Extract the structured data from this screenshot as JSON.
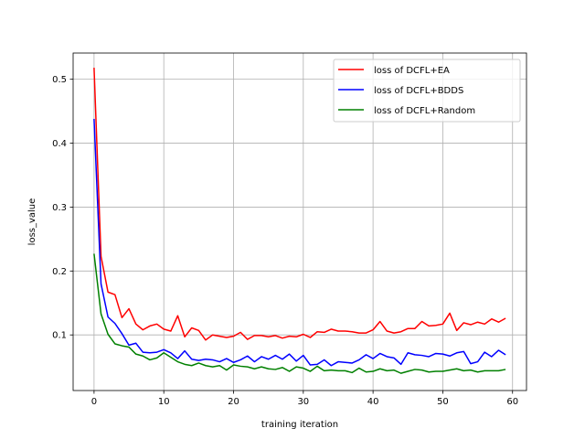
{
  "chart_data": {
    "type": "line",
    "title": "",
    "xlabel": "training iteration",
    "ylabel": "loss_value",
    "xlim": [
      -3,
      62
    ],
    "ylim": [
      0.013,
      0.541
    ],
    "xticks": [
      0,
      10,
      20,
      30,
      40,
      50,
      60
    ],
    "yticks": [
      0.1,
      0.2,
      0.3,
      0.4,
      0.5
    ],
    "grid": true,
    "legend_position": "top-right",
    "x": [
      0,
      1,
      2,
      3,
      4,
      5,
      6,
      7,
      8,
      9,
      10,
      11,
      12,
      13,
      14,
      15,
      16,
      17,
      18,
      19,
      20,
      21,
      22,
      23,
      24,
      25,
      26,
      27,
      28,
      29,
      30,
      31,
      32,
      33,
      34,
      35,
      36,
      37,
      38,
      39,
      40,
      41,
      42,
      43,
      44,
      45,
      46,
      47,
      48,
      49,
      50,
      51,
      52,
      53,
      54,
      55,
      56,
      57,
      58,
      59
    ],
    "series": [
      {
        "name": "loss of DCFL+EA",
        "color": "#ff0000",
        "values": [
          0.518,
          0.223,
          0.167,
          0.163,
          0.127,
          0.141,
          0.117,
          0.108,
          0.114,
          0.117,
          0.109,
          0.106,
          0.13,
          0.097,
          0.111,
          0.107,
          0.092,
          0.1,
          0.098,
          0.096,
          0.098,
          0.104,
          0.093,
          0.099,
          0.099,
          0.097,
          0.099,
          0.095,
          0.098,
          0.097,
          0.101,
          0.096,
          0.105,
          0.104,
          0.109,
          0.106,
          0.106,
          0.105,
          0.103,
          0.103,
          0.108,
          0.121,
          0.106,
          0.103,
          0.105,
          0.11,
          0.11,
          0.121,
          0.114,
          0.115,
          0.117,
          0.134,
          0.107,
          0.119,
          0.116,
          0.12,
          0.117,
          0.125,
          0.12,
          0.126
        ]
      },
      {
        "name": "loss of DCFL+BDDS",
        "color": "#0000ff",
        "values": [
          0.438,
          0.18,
          0.128,
          0.118,
          0.102,
          0.084,
          0.087,
          0.073,
          0.072,
          0.073,
          0.077,
          0.072,
          0.063,
          0.075,
          0.062,
          0.06,
          0.062,
          0.061,
          0.058,
          0.063,
          0.057,
          0.061,
          0.067,
          0.058,
          0.066,
          0.062,
          0.068,
          0.062,
          0.07,
          0.059,
          0.068,
          0.053,
          0.054,
          0.061,
          0.052,
          0.058,
          0.057,
          0.056,
          0.061,
          0.069,
          0.063,
          0.071,
          0.066,
          0.064,
          0.054,
          0.072,
          0.069,
          0.068,
          0.066,
          0.071,
          0.07,
          0.067,
          0.072,
          0.074,
          0.055,
          0.058,
          0.073,
          0.066,
          0.076,
          0.069
        ]
      },
      {
        "name": "loss of DCFL+Random",
        "color": "#008000",
        "values": [
          0.227,
          0.133,
          0.101,
          0.086,
          0.083,
          0.081,
          0.07,
          0.067,
          0.061,
          0.064,
          0.072,
          0.065,
          0.058,
          0.054,
          0.052,
          0.056,
          0.052,
          0.05,
          0.052,
          0.045,
          0.053,
          0.051,
          0.05,
          0.047,
          0.05,
          0.047,
          0.046,
          0.049,
          0.043,
          0.05,
          0.048,
          0.043,
          0.051,
          0.044,
          0.045,
          0.044,
          0.044,
          0.041,
          0.048,
          0.042,
          0.043,
          0.047,
          0.044,
          0.045,
          0.04,
          0.043,
          0.046,
          0.045,
          0.042,
          0.043,
          0.043,
          0.045,
          0.047,
          0.044,
          0.045,
          0.042,
          0.044,
          0.044,
          0.044,
          0.046
        ]
      }
    ]
  }
}
